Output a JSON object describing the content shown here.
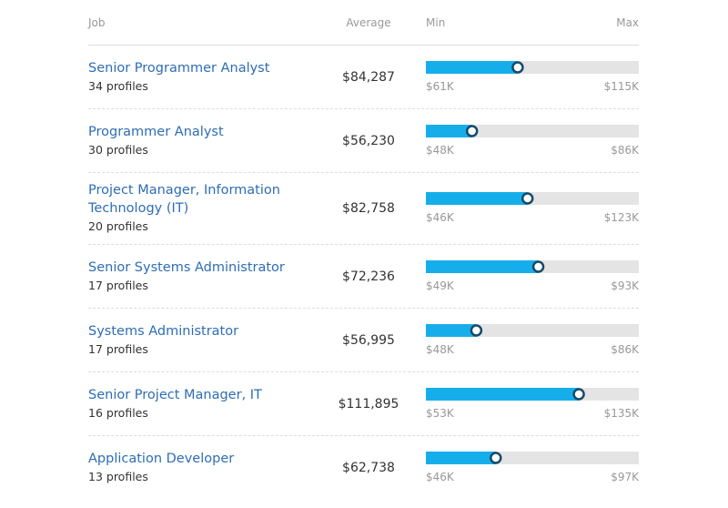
{
  "table": {
    "header": {
      "job": "Job",
      "average": "Average",
      "min": "Min",
      "max": "Max"
    },
    "rows": [
      {
        "job": "Senior Programmer Analyst",
        "profiles": "34 profiles",
        "average": {
          "value": 84287,
          "label": "$84,287"
        },
        "min": {
          "value": 61000,
          "label": "$61K"
        },
        "max": {
          "value": 115000,
          "label": "$115K"
        }
      },
      {
        "job": "Programmer Analyst",
        "profiles": "30 profiles",
        "average": {
          "value": 56230,
          "label": "$56,230"
        },
        "min": {
          "value": 48000,
          "label": "$48K"
        },
        "max": {
          "value": 86000,
          "label": "$86K"
        }
      },
      {
        "job": "Project Manager, Information Technology (IT)",
        "profiles": "20 profiles",
        "average": {
          "value": 82758,
          "label": "$82,758"
        },
        "min": {
          "value": 46000,
          "label": "$46K"
        },
        "max": {
          "value": 123000,
          "label": "$123K"
        }
      },
      {
        "job": "Senior Systems Administrator",
        "profiles": "17 profiles",
        "average": {
          "value": 72236,
          "label": "$72,236"
        },
        "min": {
          "value": 49000,
          "label": "$49K"
        },
        "max": {
          "value": 93000,
          "label": "$93K"
        }
      },
      {
        "job": "Systems Administrator",
        "profiles": "17 profiles",
        "average": {
          "value": 56995,
          "label": "$56,995"
        },
        "min": {
          "value": 48000,
          "label": "$48K"
        },
        "max": {
          "value": 86000,
          "label": "$86K"
        }
      },
      {
        "job": "Senior Project Manager, IT",
        "profiles": "16 profiles",
        "average": {
          "value": 111895,
          "label": "$111,895"
        },
        "min": {
          "value": 53000,
          "label": "$53K"
        },
        "max": {
          "value": 135000,
          "label": "$135K"
        }
      },
      {
        "job": "Application Developer",
        "profiles": "13 profiles",
        "average": {
          "value": 62738,
          "label": "$62,738"
        },
        "min": {
          "value": 46000,
          "label": "$46K"
        },
        "max": {
          "value": 97000,
          "label": "$97K"
        }
      }
    ]
  }
}
